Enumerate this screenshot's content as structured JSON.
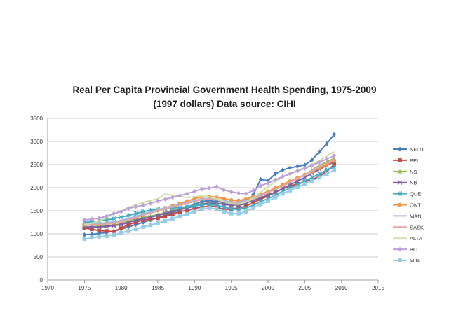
{
  "chart_data": {
    "type": "line",
    "title": "Real Per Capita Provincial Government Health Spending, 1975-2009",
    "subtitle": "(1997 dollars)  Data source: CIHI",
    "xlabel": "",
    "ylabel": "",
    "xlim": [
      1970,
      2015
    ],
    "ylim": [
      0,
      3500
    ],
    "xticks": [
      1970,
      1975,
      1980,
      1985,
      1990,
      1995,
      2000,
      2005,
      2010,
      2015
    ],
    "yticks": [
      0,
      500,
      1000,
      1500,
      2000,
      2500,
      3000,
      3500
    ],
    "grid": "horizontal",
    "legend_position": "right",
    "x": [
      1975,
      1976,
      1977,
      1978,
      1979,
      1980,
      1981,
      1982,
      1983,
      1984,
      1985,
      1986,
      1987,
      1988,
      1989,
      1990,
      1991,
      1992,
      1993,
      1994,
      1995,
      1996,
      1997,
      1998,
      1999,
      2000,
      2001,
      2002,
      2003,
      2004,
      2005,
      2006,
      2007,
      2008,
      2009
    ],
    "series": [
      {
        "name": "NFLD",
        "color": "#4a7ebb",
        "marker": "diamond",
        "values": [
          980,
          990,
          1010,
          1030,
          1060,
          1100,
          1150,
          1200,
          1250,
          1300,
          1350,
          1400,
          1460,
          1520,
          1580,
          1640,
          1700,
          1720,
          1700,
          1680,
          1650,
          1620,
          1650,
          1850,
          2180,
          2150,
          2300,
          2380,
          2430,
          2460,
          2490,
          2600,
          2780,
          2950,
          3150
        ]
      },
      {
        "name": "PEI",
        "color": "#be4b48",
        "marker": "square",
        "values": [
          1130,
          1100,
          1070,
          1060,
          1050,
          1120,
          1200,
          1250,
          1300,
          1320,
          1340,
          1380,
          1430,
          1480,
          1510,
          1550,
          1580,
          1600,
          1590,
          1520,
          1540,
          1560,
          1600,
          1680,
          1750,
          1820,
          1900,
          1980,
          2030,
          2080,
          2130,
          2170,
          2250,
          2350,
          2500
        ]
      },
      {
        "name": "NS",
        "color": "#98b954",
        "marker": "triangle",
        "values": [
          1200,
          1190,
          1180,
          1180,
          1190,
          1220,
          1280,
          1320,
          1350,
          1380,
          1420,
          1460,
          1500,
          1540,
          1580,
          1620,
          1650,
          1670,
          1660,
          1640,
          1630,
          1640,
          1680,
          1750,
          1820,
          1900,
          1980,
          2050,
          2120,
          2200,
          2280,
          2380,
          2480,
          2560,
          2630
        ]
      },
      {
        "name": "NB",
        "color": "#7d60a0",
        "marker": "cross",
        "values": [
          1150,
          1150,
          1150,
          1160,
          1180,
          1200,
          1250,
          1290,
          1330,
          1360,
          1400,
          1440,
          1480,
          1520,
          1560,
          1600,
          1640,
          1660,
          1660,
          1640,
          1620,
          1630,
          1670,
          1720,
          1780,
          1840,
          1900,
          1980,
          2060,
          2140,
          2220,
          2310,
          2400,
          2480,
          2560
        ]
      },
      {
        "name": "QUE",
        "color": "#46aac5",
        "marker": "asterisk",
        "values": [
          1250,
          1260,
          1280,
          1300,
          1330,
          1360,
          1400,
          1440,
          1480,
          1510,
          1530,
          1550,
          1560,
          1570,
          1590,
          1610,
          1630,
          1640,
          1620,
          1580,
          1540,
          1530,
          1560,
          1620,
          1700,
          1760,
          1840,
          1920,
          1990,
          2060,
          2140,
          2220,
          2300,
          2380,
          2450
        ]
      },
      {
        "name": "ONT",
        "color": "#f69544",
        "marker": "circle",
        "values": [
          1200,
          1210,
          1210,
          1220,
          1240,
          1270,
          1310,
          1360,
          1410,
          1460,
          1510,
          1560,
          1610,
          1660,
          1710,
          1760,
          1800,
          1810,
          1790,
          1760,
          1730,
          1720,
          1750,
          1800,
          1860,
          1920,
          1990,
          2070,
          2140,
          2210,
          2280,
          2350,
          2420,
          2500,
          2580
        ]
      },
      {
        "name": "MAN",
        "color": "#a7b7db",
        "marker": "line",
        "values": [
          1210,
          1220,
          1230,
          1240,
          1260,
          1290,
          1330,
          1380,
          1430,
          1480,
          1520,
          1560,
          1600,
          1640,
          1680,
          1720,
          1760,
          1770,
          1750,
          1720,
          1690,
          1690,
          1720,
          1780,
          1840,
          1900,
          1960,
          2030,
          2110,
          2190,
          2270,
          2360,
          2450,
          2540,
          2610
        ]
      },
      {
        "name": "SASK",
        "color": "#dfa9a8",
        "marker": "line",
        "values": [
          1180,
          1190,
          1200,
          1210,
          1230,
          1260,
          1300,
          1350,
          1400,
          1450,
          1500,
          1540,
          1580,
          1620,
          1660,
          1700,
          1740,
          1760,
          1740,
          1700,
          1660,
          1660,
          1690,
          1750,
          1820,
          1890,
          1960,
          2040,
          2120,
          2200,
          2280,
          2370,
          2460,
          2540,
          2600
        ]
      },
      {
        "name": "ALTA",
        "color": "#cfe0a9",
        "marker": "line",
        "values": [
          1200,
          1230,
          1280,
          1350,
          1430,
          1500,
          1570,
          1630,
          1680,
          1720,
          1760,
          1860,
          1840,
          1810,
          1790,
          1800,
          1820,
          1800,
          1760,
          1700,
          1650,
          1640,
          1690,
          1780,
          1900,
          2020,
          2130,
          2230,
          2300,
          2370,
          2430,
          2500,
          2580,
          2680,
          2780
        ]
      },
      {
        "name": "BC",
        "color": "#bba2d6",
        "marker": "diamond",
        "values": [
          1300,
          1320,
          1340,
          1380,
          1440,
          1480,
          1550,
          1590,
          1620,
          1660,
          1710,
          1750,
          1790,
          1830,
          1870,
          1920,
          1970,
          1990,
          2020,
          1950,
          1910,
          1880,
          1870,
          1940,
          2040,
          2100,
          2170,
          2240,
          2300,
          2360,
          2420,
          2480,
          2550,
          2620,
          2690
        ]
      },
      {
        "name": "MIN",
        "color": "#95cce6",
        "marker": "square",
        "values": [
          880,
          920,
          940,
          950,
          980,
          1020,
          1060,
          1100,
          1150,
          1190,
          1230,
          1280,
          1330,
          1380,
          1430,
          1480,
          1530,
          1560,
          1540,
          1480,
          1440,
          1440,
          1480,
          1560,
          1640,
          1710,
          1790,
          1870,
          1940,
          2010,
          2080,
          2150,
          2220,
          2300,
          2380
        ]
      }
    ]
  }
}
